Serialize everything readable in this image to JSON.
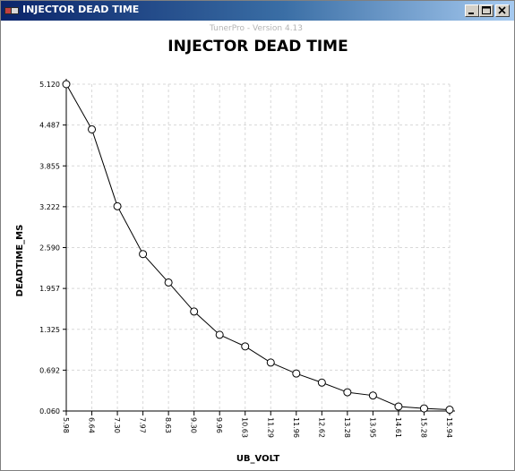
{
  "window": {
    "title": "INJECTOR DEAD TIME",
    "icon": "tunerpro-app-icon",
    "buttons": {
      "minimize": "minimize-icon",
      "maximize": "maximize-icon",
      "close": "close-icon"
    }
  },
  "watermark": "TunerPro - Version 4.13",
  "chart_data": {
    "type": "line",
    "title": "INJECTOR DEAD TIME",
    "xlabel": "UB_VOLT",
    "ylabel": "DEADTIME_MS",
    "x_tick_labels": [
      "5.98",
      "6.64",
      "7.30",
      "7.97",
      "8.63",
      "9.30",
      "9.96",
      "10.63",
      "11.29",
      "11.96",
      "12.62",
      "13.28",
      "13.95",
      "14.61",
      "15.28",
      "15.94"
    ],
    "y_tick_labels": [
      "0.060",
      "0.692",
      "1.325",
      "1.957",
      "2.590",
      "3.222",
      "3.855",
      "4.487",
      "5.120"
    ],
    "x": [
      5.98,
      6.64,
      7.3,
      7.97,
      8.63,
      9.3,
      9.96,
      10.63,
      11.29,
      11.96,
      12.62,
      13.28,
      13.95,
      14.61,
      15.28,
      15.94
    ],
    "values": [
      5.12,
      4.42,
      3.23,
      2.49,
      2.05,
      1.6,
      1.24,
      1.06,
      0.81,
      0.64,
      0.5,
      0.35,
      0.3,
      0.13,
      0.1,
      0.08
    ],
    "ylim": [
      0.06,
      5.12
    ],
    "grid": true,
    "line_color": "#000000",
    "marker": "open-circle"
  }
}
